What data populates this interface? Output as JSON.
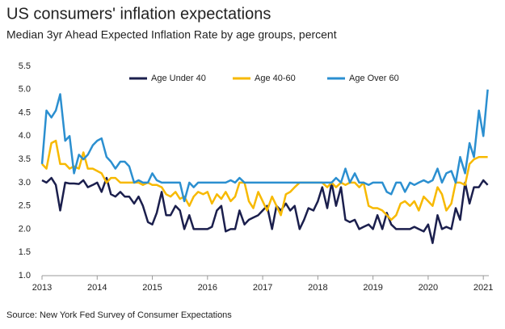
{
  "chart_data": {
    "type": "line",
    "title": "US consumers' inflation expectations",
    "subtitle": "Median 3yr Ahead Expected Inflation Rate by age groups, percent",
    "source": "Source: New York Fed Survey of Consumer Expectations",
    "legend": "top",
    "grid": false,
    "x": [
      2013,
      2013.08,
      2013.17,
      2013.25,
      2013.33,
      2013.42,
      2013.5,
      2013.58,
      2013.67,
      2013.75,
      2013.83,
      2013.92,
      2014,
      2014.08,
      2014.17,
      2014.25,
      2014.33,
      2014.42,
      2014.5,
      2014.58,
      2014.67,
      2014.75,
      2014.83,
      2014.92,
      2015,
      2015.08,
      2015.17,
      2015.25,
      2015.33,
      2015.42,
      2015.5,
      2015.58,
      2015.67,
      2015.75,
      2015.83,
      2015.92,
      2016,
      2016.08,
      2016.17,
      2016.25,
      2016.33,
      2016.42,
      2016.5,
      2016.58,
      2016.67,
      2016.75,
      2016.83,
      2016.92,
      2017,
      2017.08,
      2017.17,
      2017.25,
      2017.33,
      2017.42,
      2017.5,
      2017.58,
      2017.67,
      2017.75,
      2017.83,
      2017.92,
      2018,
      2018.08,
      2018.17,
      2018.25,
      2018.33,
      2018.42,
      2018.5,
      2018.58,
      2018.67,
      2018.75,
      2018.83,
      2018.92,
      2019,
      2019.08,
      2019.17,
      2019.25,
      2019.33,
      2019.42,
      2019.5,
      2019.58,
      2019.67,
      2019.75,
      2019.83,
      2019.92,
      2020,
      2020.08,
      2020.17,
      2020.25,
      2020.33,
      2020.42,
      2020.5,
      2020.58,
      2020.67,
      2020.75,
      2020.83,
      2020.92,
      2021,
      2021.08
    ],
    "series": [
      {
        "name": "Age Under 40",
        "color": "#1b1f4d",
        "values": [
          3.05,
          3.0,
          3.1,
          2.95,
          2.4,
          3.0,
          2.98,
          2.98,
          2.97,
          3.05,
          2.9,
          2.95,
          3.0,
          2.8,
          3.1,
          2.75,
          2.7,
          2.8,
          2.7,
          2.7,
          2.55,
          2.7,
          2.5,
          2.15,
          2.1,
          2.35,
          2.8,
          2.3,
          2.3,
          2.5,
          2.4,
          2.0,
          2.3,
          2.0,
          2.0,
          2.0,
          2.0,
          2.05,
          2.4,
          2.5,
          1.95,
          2.0,
          2.0,
          2.4,
          2.1,
          2.2,
          2.25,
          2.3,
          2.4,
          2.5,
          2.0,
          2.5,
          2.4,
          2.55,
          2.4,
          2.5,
          2.0,
          2.2,
          2.45,
          2.4,
          2.6,
          2.9,
          2.45,
          3.0,
          2.5,
          2.9,
          2.2,
          2.15,
          2.2,
          2.0,
          2.05,
          2.1,
          2.0,
          2.3,
          2.0,
          2.35,
          2.1,
          2.0,
          2.0,
          2.0,
          2.0,
          2.05,
          2.0,
          1.95,
          2.1,
          1.7,
          2.3,
          2.0,
          2.05,
          2.0,
          2.45,
          2.2,
          3.0,
          2.55,
          2.9,
          2.9,
          3.05,
          2.95
        ]
      },
      {
        "name": "Age 40-60",
        "color": "#f7b900",
        "values": [
          3.4,
          3.3,
          3.85,
          3.9,
          3.4,
          3.4,
          3.3,
          3.35,
          3.3,
          3.65,
          3.3,
          3.3,
          3.25,
          3.2,
          3.0,
          3.1,
          3.1,
          3.0,
          3.0,
          3.0,
          3.0,
          3.0,
          2.95,
          3.0,
          2.95,
          2.95,
          2.9,
          2.75,
          2.7,
          2.8,
          2.65,
          2.7,
          2.5,
          2.7,
          2.8,
          2.75,
          2.8,
          2.55,
          2.75,
          2.65,
          2.8,
          2.6,
          2.7,
          3.0,
          3.0,
          2.6,
          2.45,
          2.8,
          2.6,
          2.4,
          2.7,
          2.5,
          2.3,
          2.75,
          2.8,
          2.9,
          3.0,
          3.0,
          3.0,
          3.0,
          3.0,
          3.0,
          2.9,
          3.0,
          2.9,
          3.0,
          2.95,
          3.0,
          3.0,
          2.9,
          3.0,
          2.5,
          2.45,
          2.45,
          2.4,
          2.3,
          2.2,
          2.3,
          2.55,
          2.6,
          2.5,
          2.6,
          2.4,
          2.7,
          2.6,
          2.5,
          2.9,
          2.75,
          2.4,
          2.55,
          3.0,
          3.0,
          2.95,
          3.4,
          3.5,
          3.55,
          3.55,
          3.55
        ]
      },
      {
        "name": "Age Over 60",
        "color": "#2b8fd0",
        "values": [
          3.4,
          4.55,
          4.4,
          4.55,
          4.9,
          3.9,
          4.0,
          3.2,
          3.6,
          3.5,
          3.6,
          3.8,
          3.9,
          3.95,
          3.55,
          3.45,
          3.3,
          3.45,
          3.45,
          3.35,
          3.0,
          3.05,
          3.0,
          3.0,
          3.2,
          3.05,
          3.0,
          3.0,
          3.0,
          3.0,
          3.0,
          2.6,
          3.0,
          2.9,
          3.0,
          3.0,
          3.0,
          3.0,
          3.0,
          3.0,
          3.0,
          3.05,
          3.0,
          3.1,
          3.0,
          3.0,
          3.0,
          3.0,
          3.0,
          3.0,
          3.0,
          3.0,
          3.0,
          3.0,
          3.0,
          3.0,
          3.0,
          3.0,
          3.0,
          3.0,
          3.0,
          3.0,
          3.0,
          3.0,
          3.1,
          3.0,
          3.3,
          3.0,
          3.2,
          3.0,
          3.0,
          2.95,
          3.0,
          3.0,
          3.0,
          2.8,
          2.75,
          3.0,
          3.0,
          2.8,
          3.0,
          2.95,
          3.0,
          3.05,
          3.0,
          3.05,
          3.3,
          3.0,
          3.2,
          3.25,
          3.0,
          3.55,
          3.2,
          3.85,
          3.55,
          4.55,
          4.0,
          5.0
        ]
      }
    ],
    "xlim": [
      2013,
      2021.1
    ],
    "xticks": [
      2013,
      2014,
      2015,
      2016,
      2017,
      2018,
      2019,
      2020,
      2021
    ],
    "ylim": [
      1,
      5.5
    ],
    "yticks": [
      {
        "value": 1,
        "label": "1.0"
      },
      1.5,
      {
        "value": 2,
        "label": "2.0"
      },
      2.5,
      {
        "value": 3,
        "label": "3.0"
      },
      3.5,
      {
        "value": 4,
        "label": "4.0"
      },
      4.5,
      {
        "value": 5,
        "label": "5.0"
      },
      5.5
    ]
  }
}
